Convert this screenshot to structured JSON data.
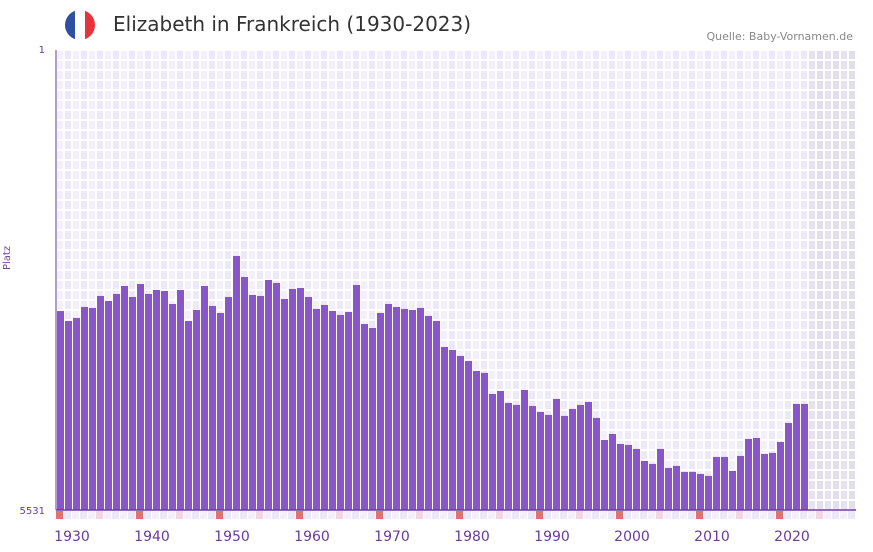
{
  "header": {
    "title": "Elizabeth in Frankreich (1930-2023)",
    "source": "Quelle: Baby-Vornamen.de",
    "flag_colors": [
      "#2f4fa2",
      "#ffffff",
      "#e8323c"
    ]
  },
  "colors": {
    "bar": "#8a55c6",
    "axis": "#6a3aa0",
    "tick_label": "#6a3aa0",
    "marker_red": "#e57070",
    "marker_pink": "#f3d6e2"
  },
  "chart_data": {
    "type": "bar",
    "title": "Elizabeth in Frankreich (1930-2023)",
    "xlabel": "",
    "ylabel": "Platz",
    "y_inverted": true,
    "ylim": [
      1,
      5531
    ],
    "ytick_labels": [
      "1",
      "5531"
    ],
    "xtick_labels": [
      "1930",
      "1940",
      "1950",
      "1960",
      "1970",
      "1980",
      "1990",
      "2000",
      "2010",
      "2020"
    ],
    "x_range": [
      1930,
      2029
    ],
    "grid": true,
    "years": [
      1930,
      1931,
      1932,
      1933,
      1934,
      1935,
      1936,
      1937,
      1938,
      1939,
      1940,
      1941,
      1942,
      1943,
      1944,
      1945,
      1946,
      1947,
      1948,
      1949,
      1950,
      1951,
      1952,
      1953,
      1954,
      1955,
      1956,
      1957,
      1958,
      1959,
      1960,
      1961,
      1962,
      1963,
      1964,
      1965,
      1966,
      1967,
      1968,
      1969,
      1970,
      1971,
      1972,
      1973,
      1974,
      1975,
      1976,
      1977,
      1978,
      1979,
      1980,
      1981,
      1982,
      1983,
      1984,
      1985,
      1986,
      1987,
      1988,
      1989,
      1990,
      1991,
      1992,
      1993,
      1994,
      1995,
      1996,
      1997,
      1998,
      1999,
      2000,
      2001,
      2002,
      2003,
      2004,
      2005,
      2006,
      2007,
      2008,
      2009,
      2010,
      2011,
      2012,
      2013,
      2014,
      2015,
      2016,
      2017,
      2018,
      2019,
      2020,
      2021,
      2022,
      2023
    ],
    "values": [
      3139,
      3258,
      3222,
      3090,
      3102,
      2958,
      3018,
      2934,
      2838,
      2970,
      2814,
      2934,
      2886,
      2898,
      3054,
      2886,
      3258,
      3126,
      2838,
      3078,
      3162,
      2970,
      2477,
      2730,
      2946,
      2958,
      2766,
      2802,
      2994,
      2874,
      2862,
      2970,
      3114,
      3066,
      3138,
      3186,
      3150,
      2826,
      3295,
      3343,
      3162,
      3054,
      3090,
      3114,
      3126,
      3102,
      3198,
      3258,
      3571,
      3607,
      3679,
      3739,
      3859,
      3883,
      4136,
      4100,
      4244,
      4268,
      4088,
      4280,
      4352,
      4388,
      4196,
      4400,
      4316,
      4268,
      4232,
      4424,
      4689,
      4617,
      4737,
      4749,
      4797,
      4941,
      4977,
      4797,
      5025,
      5001,
      5073,
      5073,
      5097,
      5121,
      4893,
      4893,
      5061,
      4881,
      4677,
      4665,
      4857,
      4845,
      4713,
      4485,
      4256,
      4256
    ]
  }
}
